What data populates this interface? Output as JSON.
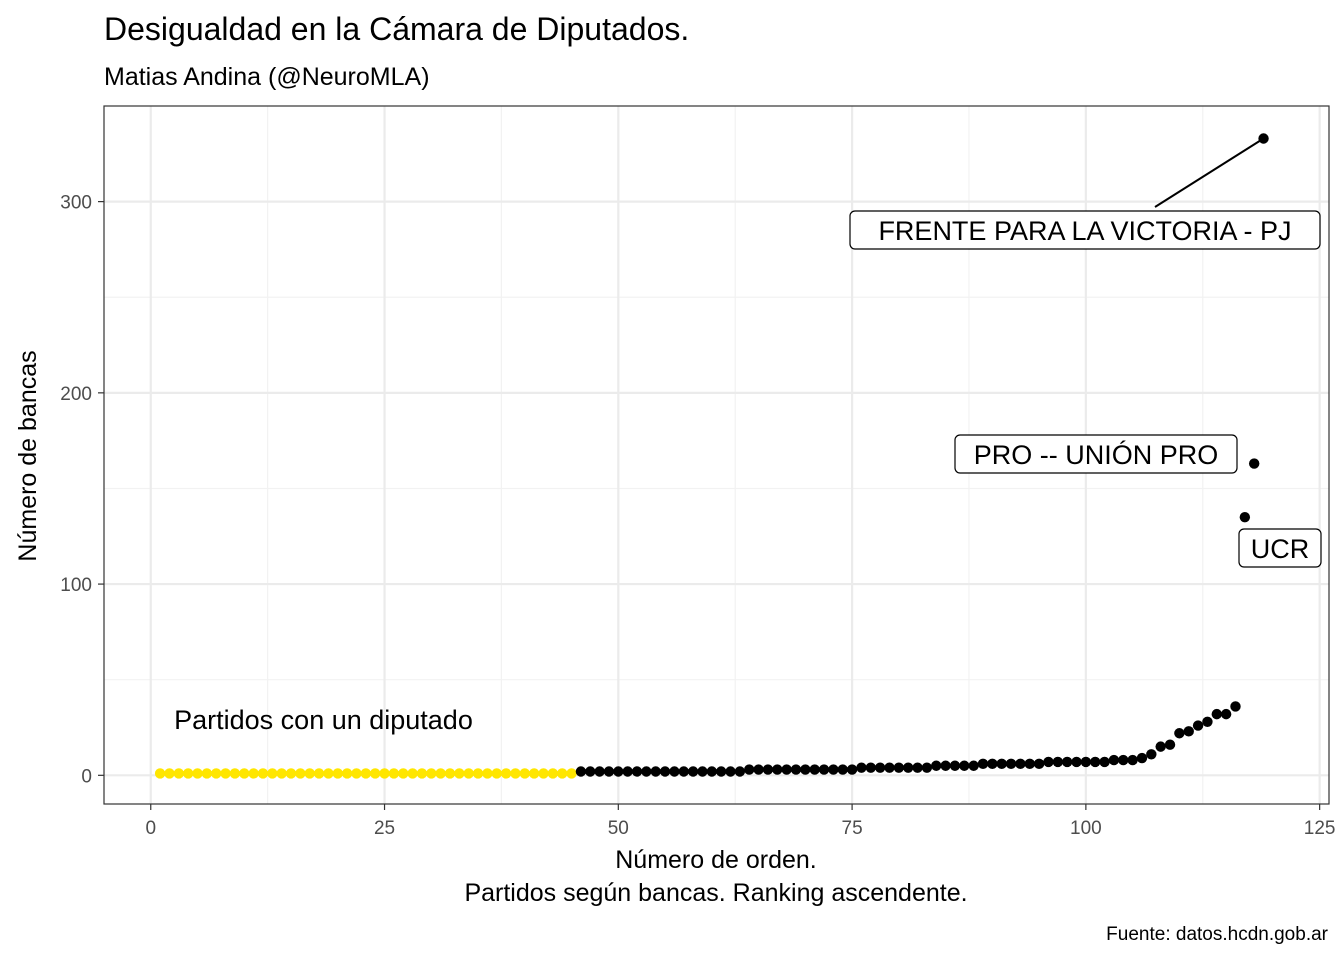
{
  "chart_data": {
    "type": "scatter",
    "title": "Desigualdad en la Cámara de Diputados.",
    "subtitle": "Matias Andina (@NeuroMLA)",
    "xlabel": "Número de orden.",
    "xlabel2": "Partidos según bancas. Ranking ascendente.",
    "ylabel": "Número de bancas",
    "caption": "Fuente: datos.hcdn.gob.ar",
    "xlim": [
      -5,
      126
    ],
    "ylim": [
      -15,
      350
    ],
    "xticks": [
      0,
      25,
      50,
      75,
      100,
      125
    ],
    "yticks": [
      0,
      100,
      200,
      300
    ],
    "grid": true,
    "colors": {
      "highlight": "#FFE600",
      "default": "#000000"
    },
    "annotation": {
      "text": "Partidos con un diputado",
      "x": 2.5,
      "y": 29
    },
    "highlight_max_x": 45,
    "points": [
      [
        1,
        1
      ],
      [
        2,
        1
      ],
      [
        3,
        1
      ],
      [
        4,
        1
      ],
      [
        5,
        1
      ],
      [
        6,
        1
      ],
      [
        7,
        1
      ],
      [
        8,
        1
      ],
      [
        9,
        1
      ],
      [
        10,
        1
      ],
      [
        11,
        1
      ],
      [
        12,
        1
      ],
      [
        13,
        1
      ],
      [
        14,
        1
      ],
      [
        15,
        1
      ],
      [
        16,
        1
      ],
      [
        17,
        1
      ],
      [
        18,
        1
      ],
      [
        19,
        1
      ],
      [
        20,
        1
      ],
      [
        21,
        1
      ],
      [
        22,
        1
      ],
      [
        23,
        1
      ],
      [
        24,
        1
      ],
      [
        25,
        1
      ],
      [
        26,
        1
      ],
      [
        27,
        1
      ],
      [
        28,
        1
      ],
      [
        29,
        1
      ],
      [
        30,
        1
      ],
      [
        31,
        1
      ],
      [
        32,
        1
      ],
      [
        33,
        1
      ],
      [
        34,
        1
      ],
      [
        35,
        1
      ],
      [
        36,
        1
      ],
      [
        37,
        1
      ],
      [
        38,
        1
      ],
      [
        39,
        1
      ],
      [
        40,
        1
      ],
      [
        41,
        1
      ],
      [
        42,
        1
      ],
      [
        43,
        1
      ],
      [
        44,
        1
      ],
      [
        45,
        1
      ],
      [
        46,
        2
      ],
      [
        47,
        2
      ],
      [
        48,
        2
      ],
      [
        49,
        2
      ],
      [
        50,
        2
      ],
      [
        51,
        2
      ],
      [
        52,
        2
      ],
      [
        53,
        2
      ],
      [
        54,
        2
      ],
      [
        55,
        2
      ],
      [
        56,
        2
      ],
      [
        57,
        2
      ],
      [
        58,
        2
      ],
      [
        59,
        2
      ],
      [
        60,
        2
      ],
      [
        61,
        2
      ],
      [
        62,
        2
      ],
      [
        63,
        2
      ],
      [
        64,
        3
      ],
      [
        65,
        3
      ],
      [
        66,
        3
      ],
      [
        67,
        3
      ],
      [
        68,
        3
      ],
      [
        69,
        3
      ],
      [
        70,
        3
      ],
      [
        71,
        3
      ],
      [
        72,
        3
      ],
      [
        73,
        3
      ],
      [
        74,
        3
      ],
      [
        75,
        3
      ],
      [
        76,
        4
      ],
      [
        77,
        4
      ],
      [
        78,
        4
      ],
      [
        79,
        4
      ],
      [
        80,
        4
      ],
      [
        81,
        4
      ],
      [
        82,
        4
      ],
      [
        83,
        4
      ],
      [
        84,
        5
      ],
      [
        85,
        5
      ],
      [
        86,
        5
      ],
      [
        87,
        5
      ],
      [
        88,
        5
      ],
      [
        89,
        6
      ],
      [
        90,
        6
      ],
      [
        91,
        6
      ],
      [
        92,
        6
      ],
      [
        93,
        6
      ],
      [
        94,
        6
      ],
      [
        95,
        6
      ],
      [
        96,
        7
      ],
      [
        97,
        7
      ],
      [
        98,
        7
      ],
      [
        99,
        7
      ],
      [
        100,
        7
      ],
      [
        101,
        7
      ],
      [
        102,
        7
      ],
      [
        103,
        8
      ],
      [
        104,
        8
      ],
      [
        105,
        8
      ],
      [
        106,
        9
      ],
      [
        107,
        11
      ],
      [
        108,
        15
      ],
      [
        109,
        16
      ],
      [
        110,
        22
      ],
      [
        111,
        23
      ],
      [
        112,
        26
      ],
      [
        113,
        28
      ],
      [
        114,
        32
      ],
      [
        115,
        32
      ],
      [
        116,
        36
      ],
      [
        117,
        135
      ],
      [
        118,
        163
      ],
      [
        119,
        333
      ]
    ],
    "labels": [
      {
        "text": "FRENTE PARA LA VICTORIA - PJ",
        "x": 119,
        "y": 333
      },
      {
        "text": "PRO -- UNIÓN PRO",
        "x": 118,
        "y": 163
      },
      {
        "text": "UCR",
        "x": 117,
        "y": 135
      }
    ]
  }
}
